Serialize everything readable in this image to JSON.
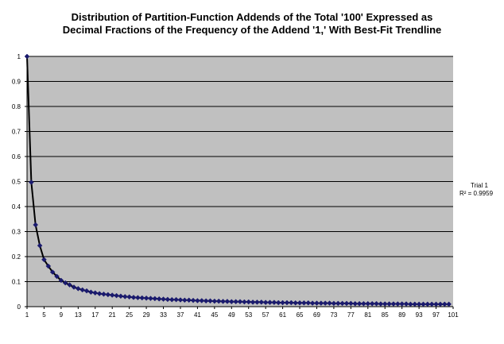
{
  "chart_data": {
    "type": "scatter",
    "title": [
      "Distribution of Partition-Function Addends of the Total '100' Expressed as",
      "Decimal Fractions of the Frequency of the Addend '1,' With Best-Fit Trendline"
    ],
    "xlabel": "",
    "ylabel": "",
    "xlim": [
      1,
      101
    ],
    "ylim": [
      0,
      1
    ],
    "y_ticks": [
      "0",
      "0.1",
      "0.2",
      "0.3",
      "0.4",
      "0.5",
      "0.6",
      "0.7",
      "0.8",
      "0.9",
      "1"
    ],
    "x_ticks": [
      "1",
      "5",
      "9",
      "13",
      "17",
      "21",
      "25",
      "29",
      "33",
      "37",
      "41",
      "45",
      "49",
      "53",
      "57",
      "61",
      "65",
      "69",
      "73",
      "77",
      "81",
      "85",
      "89",
      "93",
      "97",
      "101"
    ],
    "grid": true,
    "plot_background": "#c0c0c0",
    "marker_color": "#1a1a6e",
    "trendline_color": "#000000",
    "legend_position": "right",
    "legend": {
      "series": "Trial 1",
      "r_squared": "R² = 0.9959"
    },
    "series": [
      {
        "name": "Trial 1",
        "x": [
          1,
          2,
          3,
          4,
          5,
          6,
          7,
          8,
          9,
          10,
          11,
          12,
          13,
          14,
          15,
          16,
          17,
          18,
          19,
          20,
          21,
          22,
          23,
          24,
          25,
          26,
          27,
          28,
          29,
          30,
          31,
          32,
          33,
          34,
          35,
          36,
          37,
          38,
          39,
          40,
          41,
          42,
          43,
          44,
          45,
          46,
          47,
          48,
          49,
          50,
          51,
          52,
          53,
          54,
          55,
          56,
          57,
          58,
          59,
          60,
          61,
          62,
          63,
          64,
          65,
          66,
          67,
          68,
          69,
          70,
          71,
          72,
          73,
          74,
          75,
          76,
          77,
          78,
          79,
          80,
          81,
          82,
          83,
          84,
          85,
          86,
          87,
          88,
          89,
          90,
          91,
          92,
          93,
          94,
          95,
          96,
          97,
          98,
          99,
          100
        ],
        "y": [
          1,
          0.497,
          0.327,
          0.244,
          0.188,
          0.162,
          0.138,
          0.121,
          0.105,
          0.095,
          0.087,
          0.078,
          0.072,
          0.067,
          0.063,
          0.058,
          0.055,
          0.052,
          0.05,
          0.048,
          0.046,
          0.044,
          0.042,
          0.04,
          0.039,
          0.037,
          0.036,
          0.035,
          0.034,
          0.033,
          0.032,
          0.031,
          0.03,
          0.029,
          0.028,
          0.028,
          0.027,
          0.026,
          0.026,
          0.025,
          0.024,
          0.024,
          0.023,
          0.023,
          0.022,
          0.022,
          0.021,
          0.021,
          0.02,
          0.02,
          0.02,
          0.019,
          0.019,
          0.018,
          0.018,
          0.018,
          0.017,
          0.017,
          0.017,
          0.016,
          0.016,
          0.016,
          0.016,
          0.015,
          0.015,
          0.015,
          0.015,
          0.014,
          0.014,
          0.014,
          0.014,
          0.014,
          0.013,
          0.013,
          0.013,
          0.013,
          0.013,
          0.012,
          0.012,
          0.012,
          0.012,
          0.012,
          0.012,
          0.011,
          0.011,
          0.011,
          0.011,
          0.011,
          0.011,
          0.011,
          0.01,
          0.01,
          0.01,
          0.01,
          0.01,
          0.01,
          0.01,
          0.01,
          0.01,
          0.01
        ]
      }
    ]
  }
}
